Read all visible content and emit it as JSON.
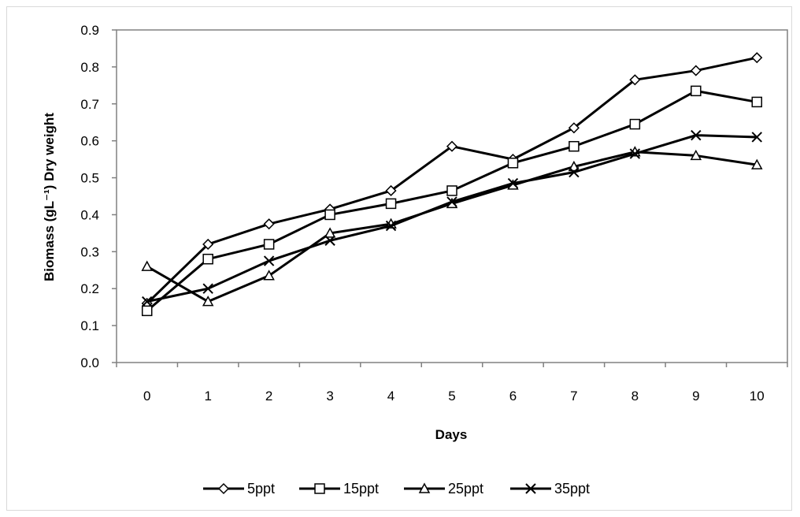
{
  "chart_data": {
    "type": "line",
    "title": "",
    "xlabel": "Days",
    "ylabel": "Biomass  (gL⁻¹) Dry weight",
    "categories": [
      "0",
      "1",
      "2",
      "3",
      "4",
      "5",
      "6",
      "7",
      "8",
      "9",
      "10"
    ],
    "ylim": [
      0,
      0.9
    ],
    "yticks": [
      "0.0",
      "0.1",
      "0.2",
      "0.3",
      "0.4",
      "0.5",
      "0.6",
      "0.7",
      "0.8",
      "0.9"
    ],
    "grid": false,
    "legend_position": "bottom",
    "series": [
      {
        "name": "5ppt",
        "marker": "diamond",
        "values": [
          0.16,
          0.32,
          0.375,
          0.415,
          0.465,
          0.585,
          0.55,
          0.635,
          0.765,
          0.79,
          0.825
        ]
      },
      {
        "name": "15ppt",
        "marker": "square",
        "values": [
          0.14,
          0.28,
          0.32,
          0.4,
          0.43,
          0.465,
          0.54,
          0.585,
          0.645,
          0.735,
          0.705
        ]
      },
      {
        "name": "25ppt",
        "marker": "triangle",
        "values": [
          0.26,
          0.165,
          0.235,
          0.35,
          0.375,
          0.43,
          0.48,
          0.53,
          0.57,
          0.56,
          0.535
        ]
      },
      {
        "name": "35ppt",
        "marker": "x",
        "values": [
          0.165,
          0.2,
          0.275,
          0.33,
          0.37,
          0.435,
          0.485,
          0.515,
          0.565,
          0.615,
          0.61
        ]
      }
    ],
    "colors": {
      "line": "#000000",
      "axis": "#808080",
      "frame": "#d9d9d9"
    }
  }
}
